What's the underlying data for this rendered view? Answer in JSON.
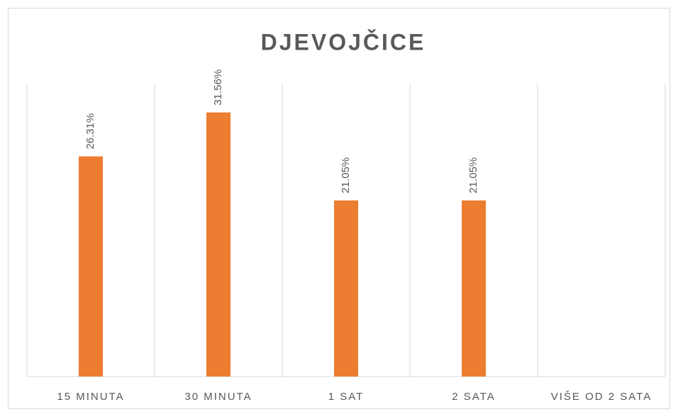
{
  "chart_data": {
    "type": "bar",
    "title": "DJEVOJČICE",
    "categories": [
      "15 MINUTA",
      "30 MINUTA",
      "1 SAT",
      "2 SATA",
      "VIŠE OD 2 SATA"
    ],
    "values": [
      26.31,
      31.56,
      21.05,
      21.05,
      null
    ],
    "value_labels": [
      "26.31%",
      "31.56%",
      "21.05%",
      "21.05%",
      null
    ],
    "color": "#ed7d31",
    "ylim": [
      0,
      35
    ]
  }
}
